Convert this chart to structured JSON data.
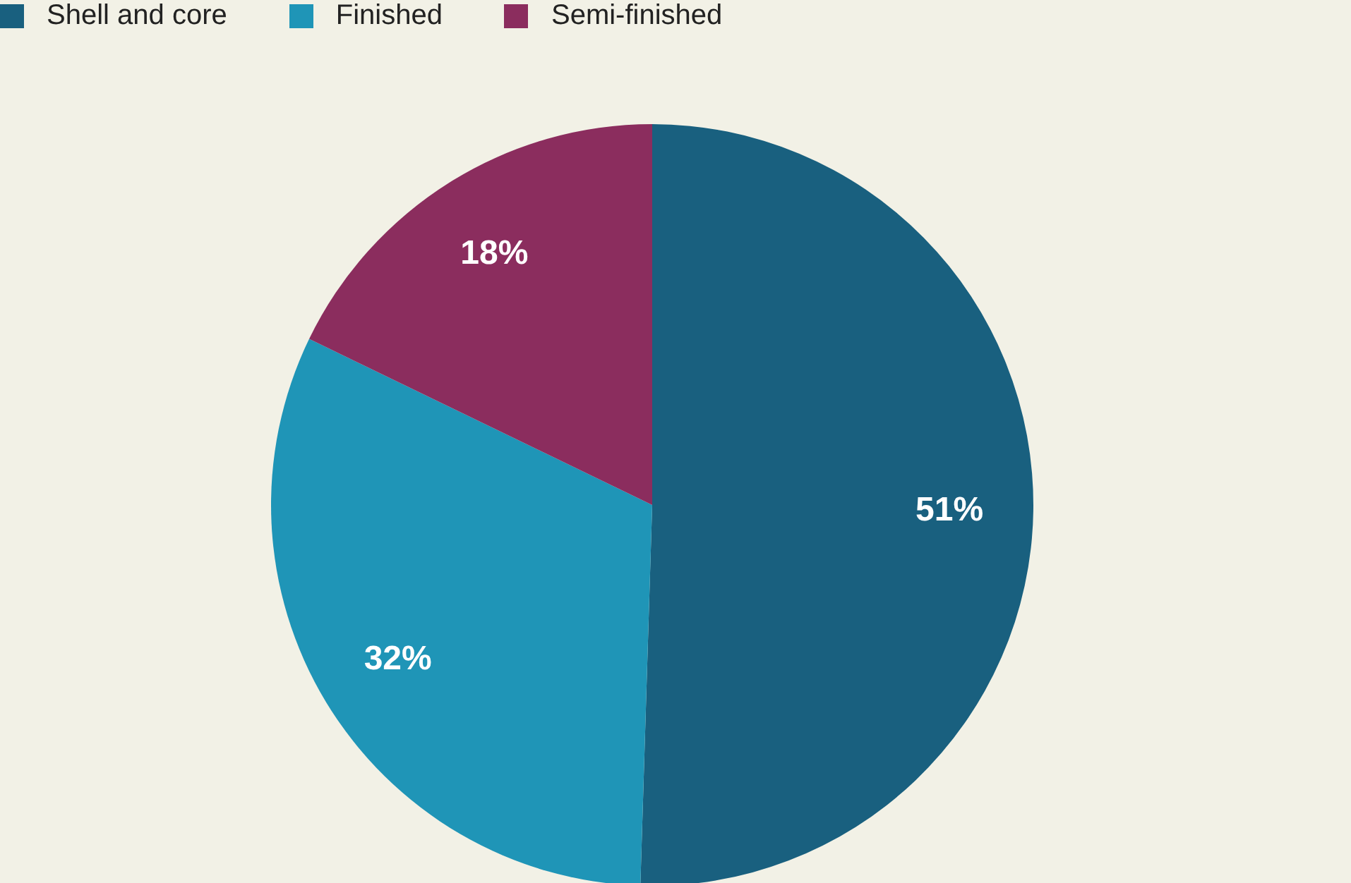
{
  "chart_data": {
    "type": "pie",
    "categories": [
      "Shell and core",
      "Finished",
      "Semi-finished"
    ],
    "values": [
      51,
      32,
      18
    ],
    "colors": [
      "#19607f",
      "#1f95b7",
      "#8b2d5e"
    ],
    "value_labels": [
      "51%",
      "32%",
      "18%"
    ],
    "legend": "top left"
  }
}
